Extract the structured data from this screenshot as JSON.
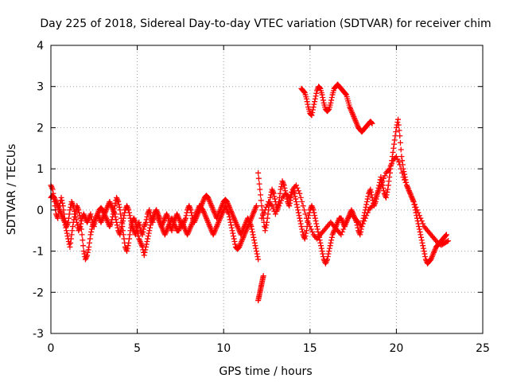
{
  "chart_data": {
    "type": "scatter",
    "title": "Day 225 of 2018, Sidereal Day-to-day VTEC variation (SDTVAR) for receiver chim",
    "xlabel": "GPS time / hours",
    "ylabel": "SDTVAR / TECUs",
    "xlim": [
      0,
      25
    ],
    "ylim": [
      -3,
      4
    ],
    "x_ticks": [
      "0",
      "5",
      "10",
      "15",
      "20",
      "25"
    ],
    "y_ticks": [
      "-3",
      "-2",
      "-1",
      "0",
      "1",
      "2",
      "3",
      "4"
    ],
    "grid": true,
    "marker": "+",
    "series_color": "#ff0000",
    "series": [
      {
        "name": "SDTVAR",
        "segments": [
          {
            "x": [
              0.0,
              0.1,
              0.2,
              0.3,
              0.4,
              0.5,
              0.6,
              0.7,
              0.8,
              0.9,
              1.0,
              1.1,
              1.2,
              1.3,
              1.4,
              1.5,
              1.6,
              1.7,
              1.8,
              1.9,
              2.0,
              2.1,
              2.2,
              2.3,
              2.4,
              2.5,
              2.6,
              2.7,
              2.8,
              2.9,
              3.0,
              3.1,
              3.2,
              3.3,
              3.4,
              3.5,
              3.6,
              3.7,
              3.8,
              3.9,
              4.0,
              4.1,
              4.2,
              4.3,
              4.4,
              4.5,
              4.6,
              4.7,
              4.8,
              4.9,
              5.0,
              5.1,
              5.2,
              5.3,
              5.4,
              5.5,
              5.6,
              5.7,
              5.8,
              5.9,
              6.0,
              6.1,
              6.2,
              6.3,
              6.4,
              6.5,
              6.6,
              6.7,
              6.8,
              6.9,
              7.0,
              7.1,
              7.2,
              7.3,
              7.4,
              7.5,
              7.6,
              7.7,
              7.8,
              7.9,
              8.0,
              8.1,
              8.2,
              8.3,
              8.4,
              8.5,
              8.6,
              8.7,
              8.8,
              8.9,
              9.0,
              9.1,
              9.2,
              9.3,
              9.4,
              9.5,
              9.6,
              9.7,
              9.8,
              9.9,
              10.0,
              10.1,
              10.2,
              10.3,
              10.4,
              10.5,
              10.6,
              10.7,
              10.8,
              10.9,
              11.0,
              11.1,
              11.2,
              11.3,
              11.4,
              11.5,
              11.6,
              11.7,
              11.8,
              11.9,
              12.0
            ],
            "y": [
              0.6,
              0.5,
              0.2,
              -0.1,
              -0.2,
              0.1,
              0.3,
              0.1,
              -0.2,
              -0.4,
              -0.3,
              0.0,
              0.2,
              0.1,
              -0.1,
              -0.3,
              -0.5,
              -0.4,
              -0.2,
              -0.1,
              -0.2,
              -0.3,
              -0.2,
              -0.1,
              -0.3,
              -0.4,
              -0.2,
              -0.1,
              -0.2,
              -0.3,
              -0.2,
              -0.1,
              0.0,
              0.1,
              0.2,
              0.1,
              0.0,
              -0.1,
              -0.3,
              -0.5,
              -0.6,
              -0.4,
              -0.2,
              0.0,
              0.1,
              0.0,
              -0.2,
              -0.4,
              -0.5,
              -0.6,
              -0.4,
              -0.3,
              -0.5,
              -0.6,
              -0.4,
              -0.3,
              -0.1,
              0.0,
              -0.2,
              -0.3,
              -0.1,
              0.0,
              -0.2,
              -0.3,
              -0.4,
              -0.3,
              -0.2,
              -0.1,
              -0.2,
              -0.4,
              -0.5,
              -0.3,
              -0.2,
              -0.1,
              -0.2,
              -0.3,
              -0.4,
              -0.3,
              -0.2,
              0.0,
              0.1,
              0.0,
              -0.2,
              -0.3,
              -0.2,
              -0.1,
              0.0,
              0.1,
              0.2,
              0.3,
              0.35,
              0.3,
              0.2,
              0.1,
              0.0,
              -0.1,
              -0.2,
              -0.1,
              0.0,
              0.1,
              0.2,
              0.25,
              0.2,
              0.1,
              0.0,
              -0.1,
              -0.2,
              -0.3,
              -0.4,
              -0.5,
              -0.6,
              -0.5,
              -0.4,
              -0.3,
              -0.2,
              -0.3,
              -0.4,
              -0.6,
              -0.8,
              -1.0,
              -1.2
            ]
          },
          {
            "x": [
              0.0,
              0.1,
              0.2,
              0.3,
              0.4,
              0.5,
              0.6,
              0.7,
              0.8,
              0.9,
              1.0,
              1.1,
              1.2,
              1.3,
              1.4,
              1.5,
              1.6,
              1.7,
              1.8,
              1.9,
              2.0,
              2.1,
              2.2,
              2.3,
              2.4,
              2.5,
              2.6,
              2.7,
              2.8,
              2.9,
              3.0,
              3.1,
              3.2,
              3.3,
              3.4,
              3.5,
              3.6,
              3.7,
              3.8,
              3.9,
              4.0,
              4.1,
              4.2,
              4.3,
              4.4,
              4.5,
              4.6,
              4.7,
              4.8,
              4.9,
              5.0,
              5.1,
              5.2,
              5.3,
              5.4,
              5.5,
              5.6,
              5.7,
              5.8,
              5.9,
              6.0,
              6.1,
              6.2,
              6.3,
              6.4,
              6.5,
              6.6,
              6.7,
              6.8,
              6.9,
              7.0,
              7.1,
              7.2,
              7.3,
              7.4,
              7.5,
              7.6,
              7.7,
              7.8,
              7.9,
              8.0,
              8.1,
              8.2,
              8.3,
              8.4,
              8.5,
              8.6,
              8.7,
              8.8,
              8.9,
              9.0,
              9.1,
              9.2,
              9.3,
              9.4,
              9.5,
              9.6,
              9.7,
              9.8,
              9.9,
              10.0,
              10.1,
              10.2,
              10.3,
              10.4,
              10.5,
              10.6,
              10.7,
              10.8,
              10.9,
              11.0,
              11.1,
              11.2,
              11.3,
              11.4,
              11.5,
              11.6,
              11.7,
              11.8,
              11.9
            ],
            "y": [
              0.3,
              0.35,
              0.3,
              0.2,
              0.1,
              0.0,
              -0.1,
              -0.2,
              -0.3,
              -0.5,
              -0.7,
              -0.9,
              -0.6,
              -0.3,
              -0.1,
              0.1,
              0.0,
              -0.2,
              -0.6,
              -1.0,
              -1.2,
              -1.1,
              -0.9,
              -0.6,
              -0.4,
              -0.3,
              -0.2,
              -0.1,
              0.0,
              0.05,
              0.0,
              -0.1,
              -0.2,
              -0.3,
              -0.4,
              -0.3,
              -0.1,
              0.1,
              0.3,
              0.2,
              0.0,
              -0.3,
              -0.6,
              -0.9,
              -1.0,
              -0.8,
              -0.5,
              -0.3,
              -0.2,
              -0.3,
              -0.5,
              -0.7,
              -0.8,
              -0.9,
              -1.1,
              -0.9,
              -0.7,
              -0.5,
              -0.3,
              -0.2,
              -0.1,
              0.0,
              -0.1,
              -0.2,
              -0.4,
              -0.5,
              -0.6,
              -0.5,
              -0.4,
              -0.3,
              -0.2,
              -0.3,
              -0.4,
              -0.5,
              -0.5,
              -0.4,
              -0.3,
              -0.4,
              -0.5,
              -0.6,
              -0.5,
              -0.4,
              -0.3,
              -0.2,
              -0.1,
              0.0,
              0.1,
              0.05,
              0.0,
              -0.1,
              -0.2,
              -0.3,
              -0.4,
              -0.5,
              -0.6,
              -0.5,
              -0.4,
              -0.3,
              -0.2,
              -0.1,
              0.0,
              0.1,
              0.0,
              -0.1,
              -0.3,
              -0.5,
              -0.7,
              -0.9,
              -0.95,
              -0.9,
              -0.8,
              -0.7,
              -0.6,
              -0.5,
              -0.4,
              -0.3,
              -0.2,
              -0.1,
              0.0,
              0.1
            ]
          },
          {
            "x": [
              12.0,
              12.05,
              12.1,
              12.15,
              12.2,
              12.25,
              12.3
            ],
            "y": [
              -2.2,
              -2.1,
              -2.0,
              -1.9,
              -1.8,
              -1.7,
              -1.6
            ]
          },
          {
            "x": [
              12.0,
              12.1,
              12.2,
              12.3,
              12.4,
              12.5,
              12.6,
              12.7,
              12.8,
              12.9,
              13.0,
              13.1,
              13.2,
              13.3,
              13.4,
              13.5,
              13.6,
              13.7,
              13.8,
              13.9,
              14.0,
              14.1,
              14.2,
              14.3,
              14.4,
              14.5,
              14.6,
              14.7,
              14.8,
              14.9,
              15.0,
              15.1,
              15.2,
              15.3,
              15.4,
              15.5,
              15.6,
              15.7,
              15.8,
              15.9,
              16.0,
              16.1,
              16.2,
              16.3,
              16.4,
              16.5,
              16.6,
              16.7,
              16.8,
              16.9,
              17.0,
              17.1,
              17.2,
              17.3,
              17.4,
              17.5,
              17.6,
              17.7,
              17.8,
              17.9,
              18.0,
              18.1,
              18.2,
              18.3,
              18.4,
              18.5,
              18.6,
              18.7,
              18.8,
              18.9,
              19.0,
              19.1,
              19.2,
              19.3,
              19.4,
              19.5,
              19.6,
              19.7,
              19.8,
              19.9,
              20.0,
              20.1,
              20.2,
              20.3,
              20.4,
              20.5,
              20.6,
              20.7,
              20.8,
              20.9,
              21.0,
              21.1,
              21.2,
              21.3,
              21.4,
              21.5,
              21.6,
              21.7,
              21.8,
              21.9,
              22.0,
              22.1,
              22.2,
              22.3,
              22.4,
              22.5,
              22.6,
              22.7,
              22.8,
              22.9
            ],
            "y": [
              0.9,
              0.5,
              0.1,
              -0.2,
              -0.5,
              -0.3,
              0.0,
              0.3,
              0.5,
              0.4,
              0.2,
              0.0,
              0.2,
              0.5,
              0.7,
              0.6,
              0.4,
              0.2,
              0.1,
              0.3,
              0.5,
              0.4,
              0.2,
              0.0,
              -0.2,
              -0.4,
              -0.6,
              -0.7,
              -0.5,
              -0.2,
              0.0,
              0.1,
              0.0,
              -0.2,
              -0.4,
              -0.6,
              -0.8,
              -1.0,
              -1.2,
              -1.3,
              -1.2,
              -1.0,
              -0.8,
              -0.6,
              -0.5,
              -0.4,
              -0.3,
              -0.2,
              -0.2,
              -0.3,
              -0.4,
              -0.3,
              -0.2,
              -0.1,
              0.0,
              -0.1,
              -0.2,
              -0.3,
              -0.5,
              -0.6,
              -0.4,
              -0.2,
              0.0,
              0.2,
              0.4,
              0.5,
              0.3,
              0.1,
              0.2,
              0.4,
              0.6,
              0.8,
              0.6,
              0.4,
              0.3,
              0.5,
              0.8,
              1.1,
              1.4,
              1.7,
              2.0,
              2.2,
              1.8,
              1.3,
              1.0,
              0.8,
              0.6,
              0.5,
              0.4,
              0.3,
              0.2,
              0.0,
              -0.2,
              -0.4,
              -0.6,
              -0.8,
              -1.0,
              -1.2,
              -1.3,
              -1.25,
              -1.2,
              -1.1,
              -1.0,
              -0.9,
              -0.85,
              -0.8,
              -0.75,
              -0.7,
              -0.65,
              -0.6
            ]
          },
          {
            "x": [
              12.2,
              12.4,
              12.6,
              12.8,
              13.0,
              13.2,
              13.4,
              13.6,
              13.8,
              14.0,
              14.2,
              14.4,
              14.6,
              14.8,
              15.0,
              15.2,
              15.4,
              15.6,
              15.8,
              16.0,
              16.2,
              16.4,
              16.6,
              16.8,
              17.0,
              17.2,
              17.4,
              17.6,
              17.8,
              18.0,
              18.2,
              18.4,
              18.6,
              18.8,
              19.0,
              19.2,
              19.4,
              19.6,
              19.8,
              20.0,
              20.2,
              20.4,
              20.6,
              20.8,
              21.0,
              21.2,
              21.4,
              21.6,
              21.8,
              22.0,
              22.2,
              22.4,
              22.6,
              22.8,
              23.0
            ],
            "y": [
              -0.2,
              0.0,
              0.2,
              0.1,
              -0.1,
              0.1,
              0.3,
              0.4,
              0.3,
              0.5,
              0.6,
              0.4,
              0.1,
              -0.2,
              -0.4,
              -0.6,
              -0.7,
              -0.6,
              -0.5,
              -0.4,
              -0.3,
              -0.4,
              -0.5,
              -0.6,
              -0.4,
              -0.2,
              -0.1,
              -0.2,
              -0.3,
              -0.4,
              -0.2,
              0.0,
              0.1,
              0.3,
              0.5,
              0.7,
              0.9,
              1.0,
              1.2,
              1.3,
              1.1,
              0.8,
              0.6,
              0.4,
              0.2,
              0.0,
              -0.2,
              -0.4,
              -0.5,
              -0.6,
              -0.7,
              -0.8,
              -0.85,
              -0.8,
              -0.75
            ]
          },
          {
            "x": [
              14.5,
              14.6,
              14.7,
              14.8,
              14.9,
              15.0,
              15.1,
              15.2,
              15.3,
              15.4,
              15.5,
              15.6,
              15.7,
              15.8,
              15.9,
              16.0,
              16.1,
              16.2,
              16.3,
              16.4,
              16.5,
              16.6,
              16.7,
              16.8,
              16.9,
              17.0,
              17.1,
              17.2,
              17.3,
              17.4,
              17.5,
              17.6,
              17.7,
              17.8,
              17.9,
              18.0,
              18.1,
              18.2,
              18.3,
              18.4,
              18.5,
              18.6
            ],
            "y": [
              2.95,
              2.9,
              2.85,
              2.7,
              2.5,
              2.35,
              2.3,
              2.5,
              2.7,
              2.9,
              3.0,
              2.95,
              2.8,
              2.6,
              2.45,
              2.4,
              2.45,
              2.6,
              2.8,
              2.95,
              3.0,
              3.05,
              3.0,
              2.95,
              2.9,
              2.85,
              2.8,
              2.65,
              2.5,
              2.4,
              2.3,
              2.2,
              2.1,
              2.0,
              1.95,
              1.9,
              1.95,
              2.0,
              2.05,
              2.1,
              2.15,
              2.1
            ]
          }
        ]
      }
    ]
  }
}
